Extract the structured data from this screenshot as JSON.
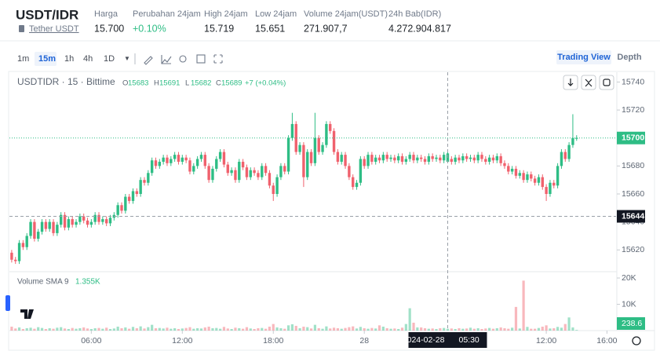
{
  "header": {
    "title": "USDT/IDR",
    "subtitle": "Tether USDT",
    "stats": [
      {
        "label": "Harga",
        "value": "15.700"
      },
      {
        "label": "Perubahan 24jam",
        "value": "+0.10%"
      },
      {
        "label": "High 24jam",
        "value": "15.719"
      },
      {
        "label": "Low 24jam",
        "value": "15.651"
      },
      {
        "label": "Volume 24jam(USDT)",
        "value": "271.907,7"
      },
      {
        "label": "24h Bab(IDR)",
        "value": "4.272.904.817"
      }
    ]
  },
  "toolbar": {
    "intervals": [
      "1m",
      "15m",
      "1h",
      "4h",
      "1D"
    ],
    "active_interval": "15m",
    "views": [
      "Trading View",
      "Depth"
    ]
  },
  "chart_data": {
    "type": "candlestick",
    "symbol_label": "USDTIDR · 15 · Bittime",
    "ohlc_letters": [
      "O",
      "H",
      "L",
      "C"
    ],
    "change_label": "+7 (+0.04%)",
    "legend_index": 115,
    "volume_label": "Volume SMA 9",
    "volume_sma": "1.355K",
    "up_color": "#2ebd85",
    "down_color": "#f0616d",
    "x": [
      0.75,
      1,
      1.25,
      1.5,
      1.75,
      2,
      2.25,
      2.5,
      2.75,
      3,
      3.25,
      3.5,
      3.75,
      4,
      4.25,
      4.5,
      4.75,
      5,
      5.25,
      5.5,
      5.75,
      6,
      6.25,
      6.5,
      6.75,
      7,
      7.25,
      7.5,
      7.75,
      8,
      8.25,
      8.5,
      8.75,
      9,
      9.25,
      9.5,
      9.75,
      10,
      10.25,
      10.5,
      10.75,
      11,
      11.25,
      11.5,
      11.75,
      12,
      12.25,
      12.5,
      12.75,
      13,
      13.25,
      13.5,
      13.75,
      14,
      14.25,
      14.5,
      14.75,
      15,
      15.25,
      15.5,
      15.75,
      16,
      16.25,
      16.5,
      16.75,
      17,
      17.25,
      17.5,
      17.75,
      18,
      18.25,
      18.5,
      18.75,
      19,
      19.25,
      19.5,
      19.75,
      20,
      20.25,
      20.5,
      20.75,
      21,
      21.25,
      21.5,
      21.75,
      22,
      22.25,
      22.5,
      22.75,
      23,
      23.25,
      23.5,
      23.75,
      24,
      24.25,
      24.5,
      24.75,
      25,
      25.25,
      25.5,
      25.75,
      26,
      26.25,
      26.5,
      26.75,
      27,
      27.25,
      27.5,
      27.75,
      28,
      28.25,
      28.5,
      28.75,
      29,
      29.25,
      29.5,
      29.75,
      30,
      30.25,
      30.5,
      30.75,
      31,
      31.25,
      31.5,
      31.75,
      32,
      32.25,
      32.5,
      32.75,
      33,
      33.25,
      33.5,
      33.75,
      34,
      34.25,
      34.5,
      34.75,
      35,
      35.25,
      35.5,
      35.75,
      36,
      36.25,
      36.5,
      36.75,
      37,
      37.25,
      37.5,
      37.75,
      38
    ],
    "open": [
      15618,
      15613,
      15612,
      15625,
      15622,
      15630,
      15640,
      15628,
      15633,
      15640,
      15635,
      15640,
      15632,
      15638,
      15645,
      15636,
      15642,
      15638,
      15640,
      15644,
      15641,
      15638,
      15640,
      15645,
      15640,
      15642,
      15639,
      15643,
      15645,
      15652,
      15648,
      15658,
      15655,
      15662,
      15660,
      15670,
      15668,
      15675,
      15684,
      15680,
      15683,
      15686,
      15682,
      15685,
      15688,
      15683,
      15686,
      15684,
      15676,
      15680,
      15685,
      15688,
      15680,
      15670,
      15678,
      15685,
      15690,
      15681,
      15675,
      15677,
      15670,
      15683,
      15679,
      15672,
      15677,
      15675,
      15672,
      15680,
      15675,
      15666,
      15660,
      15672,
      15680,
      15676,
      15700,
      15710,
      15690,
      15695,
      15672,
      15690,
      15682,
      15700,
      15690,
      15695,
      15710,
      15705,
      15690,
      15683,
      15688,
      15680,
      15672,
      15665,
      15668,
      15685,
      15680,
      15688,
      15683,
      15686,
      15684,
      15688,
      15685,
      15686,
      15684,
      15687,
      15683,
      15685,
      15688,
      15684,
      15686,
      15685,
      15683,
      15687,
      15685,
      15686,
      15684,
      15683,
      15685,
      15683,
      15686,
      15684,
      15687,
      15685,
      15686,
      15684,
      15688,
      15685,
      15683,
      15686,
      15684,
      15687,
      15682,
      15680,
      15676,
      15678,
      15673,
      15675,
      15670,
      15674,
      15671,
      15668,
      15672,
      15665,
      15660,
      15668,
      15666,
      15680,
      15690,
      15685,
      15695,
      15700
    ],
    "high": [
      15620,
      15615,
      15627,
      15627,
      15632,
      15642,
      15642,
      15635,
      15642,
      15642,
      15642,
      15642,
      15640,
      15647,
      15647,
      15644,
      15644,
      15642,
      15646,
      15646,
      15643,
      15642,
      15647,
      15647,
      15644,
      15644,
      15645,
      15647,
      15654,
      15654,
      15660,
      15660,
      15664,
      15664,
      15672,
      15672,
      15677,
      15686,
      15686,
      15685,
      15688,
      15688,
      15687,
      15690,
      15690,
      15688,
      15688,
      15686,
      15682,
      15687,
      15690,
      15690,
      15682,
      15680,
      15687,
      15692,
      15692,
      15683,
      15679,
      15679,
      15685,
      15685,
      15681,
      15679,
      15679,
      15677,
      15682,
      15682,
      15677,
      15668,
      15674,
      15682,
      15682,
      15702,
      15718,
      15712,
      15697,
      15697,
      15692,
      15692,
      15718,
      15702,
      15697,
      15712,
      15712,
      15707,
      15692,
      15690,
      15690,
      15682,
      15674,
      15670,
      15687,
      15687,
      15690,
      15690,
      15688,
      15688,
      15690,
      15690,
      15688,
      15688,
      15689,
      15689,
      15687,
      15690,
      15690,
      15688,
      15688,
      15687,
      15689,
      15689,
      15688,
      15688,
      15690,
      15691,
      15687,
      15688,
      15688,
      15689,
      15689,
      15688,
      15688,
      15690,
      15690,
      15687,
      15688,
      15688,
      15689,
      15689,
      15684,
      15682,
      15680,
      15680,
      15677,
      15677,
      15676,
      15676,
      15673,
      15674,
      15674,
      15667,
      15670,
      15670,
      15682,
      15692,
      15692,
      15697,
      15717,
      15702
    ],
    "low": [
      15611,
      15610,
      15610,
      15620,
      15620,
      15628,
      15626,
      15626,
      15631,
      15633,
      15633,
      15630,
      15630,
      15636,
      15634,
      15634,
      15636,
      15636,
      15638,
      15639,
      15636,
      15636,
      15638,
      15638,
      15638,
      15637,
      15637,
      15641,
      15643,
      15646,
      15646,
      15653,
      15653,
      15658,
      15658,
      15666,
      15666,
      15673,
      15678,
      15678,
      15681,
      15680,
      15680,
      15683,
      15681,
      15681,
      15682,
      15674,
      15674,
      15678,
      15683,
      15678,
      15668,
      15668,
      15676,
      15683,
      15679,
      15673,
      15673,
      15668,
      15668,
      15677,
      15670,
      15670,
      15673,
      15670,
      15670,
      15673,
      15664,
      15655,
      15658,
      15670,
      15674,
      15674,
      15698,
      15688,
      15688,
      15665,
      15670,
      15680,
      15680,
      15688,
      15688,
      15693,
      15703,
      15688,
      15681,
      15681,
      15678,
      15670,
      15663,
      15663,
      15666,
      15678,
      15678,
      15681,
      15681,
      15682,
      15682,
      15683,
      15683,
      15682,
      15682,
      15681,
      15681,
      15683,
      15682,
      15682,
      15683,
      15681,
      15681,
      15683,
      15683,
      15682,
      15682,
      15682,
      15681,
      15681,
      15682,
      15682,
      15683,
      15683,
      15682,
      15682,
      15683,
      15681,
      15681,
      15682,
      15682,
      15680,
      15678,
      15674,
      15674,
      15671,
      15671,
      15668,
      15668,
      15669,
      15666,
      15666,
      15663,
      15655,
      15658,
      15664,
      15664,
      15678,
      15683,
      15683,
      15693,
      15698
    ],
    "close": [
      15613,
      15612,
      15625,
      15622,
      15630,
      15640,
      15628,
      15633,
      15640,
      15635,
      15640,
      15632,
      15638,
      15645,
      15636,
      15642,
      15638,
      15640,
      15644,
      15641,
      15638,
      15640,
      15645,
      15640,
      15642,
      15639,
      15643,
      15645,
      15652,
      15648,
      15658,
      15655,
      15662,
      15660,
      15670,
      15668,
      15675,
      15684,
      15680,
      15683,
      15686,
      15682,
      15685,
      15688,
      15683,
      15686,
      15684,
      15676,
      15680,
      15685,
      15688,
      15680,
      15670,
      15678,
      15685,
      15690,
      15681,
      15675,
      15677,
      15670,
      15683,
      15679,
      15672,
      15677,
      15675,
      15672,
      15680,
      15675,
      15666,
      15660,
      15672,
      15680,
      15676,
      15700,
      15710,
      15690,
      15695,
      15672,
      15690,
      15682,
      15700,
      15690,
      15695,
      15710,
      15705,
      15690,
      15683,
      15688,
      15680,
      15672,
      15665,
      15668,
      15685,
      15680,
      15688,
      15683,
      15686,
      15684,
      15688,
      15685,
      15686,
      15684,
      15687,
      15683,
      15685,
      15688,
      15684,
      15686,
      15685,
      15683,
      15687,
      15685,
      15686,
      15684,
      15688,
      15689,
      15683,
      15686,
      15684,
      15687,
      15685,
      15686,
      15684,
      15688,
      15685,
      15683,
      15686,
      15684,
      15687,
      15682,
      15680,
      15676,
      15678,
      15673,
      15675,
      15670,
      15674,
      15671,
      15668,
      15672,
      15665,
      15660,
      15668,
      15666,
      15680,
      15690,
      15685,
      15695,
      15700,
      15700
    ],
    "volume": [
      1500,
      800,
      1200,
      600,
      900,
      1100,
      700,
      1300,
      1000,
      600,
      900,
      700,
      1100,
      1300,
      800,
      600,
      1000,
      700,
      900,
      1200,
      800,
      600,
      900,
      1000,
      700,
      1100,
      600,
      800,
      1500,
      900,
      1200,
      700,
      1400,
      900,
      1600,
      800,
      1300,
      2200,
      900,
      1000,
      800,
      1100,
      700,
      900,
      600,
      800,
      1000,
      1300,
      700,
      900,
      800,
      1200,
      1500,
      900,
      1000,
      700,
      1400,
      800,
      600,
      1100,
      900,
      700,
      1300,
      800,
      600,
      900,
      1000,
      700,
      1500,
      2500,
      1200,
      900,
      700,
      2000,
      2400,
      1800,
      900,
      1500,
      1300,
      800,
      2200,
      900,
      700,
      1600,
      800,
      1100,
      900,
      700,
      1000,
      1300,
      1600,
      800,
      1400,
      900,
      700,
      1000,
      800,
      2000,
      1500,
      900,
      700,
      800,
      600,
      1100,
      2500,
      8500,
      3000,
      1200,
      1200,
      900,
      700,
      800,
      600,
      900,
      1000,
      700,
      800,
      600,
      900,
      700,
      800,
      1100,
      700,
      900,
      600,
      800,
      1000,
      700,
      900,
      1200,
      900,
      700,
      1100,
      9000,
      800,
      19000,
      1400,
      700,
      700,
      1000,
      1500,
      2000,
      800,
      900,
      1400,
      1100,
      2500,
      5000,
      1200,
      238.6
    ],
    "xlim": [
      0.6,
      40.6
    ],
    "xticks": [
      {
        "value": 6,
        "label": "06:00"
      },
      {
        "value": 12,
        "label": "12:00"
      },
      {
        "value": 18,
        "label": "18:00"
      },
      {
        "value": 24,
        "label": "28"
      },
      {
        "value": 36,
        "label": "12:00"
      },
      {
        "value": 40,
        "label": "16:00"
      }
    ],
    "ylim": [
      15605,
      15747
    ],
    "yticks": [
      15620,
      15640,
      15660,
      15680,
      15700,
      15720,
      15740
    ],
    "volume_ylim": [
      0,
      21800
    ],
    "volume_yticks": [
      {
        "value": 10000,
        "label": "10K"
      },
      {
        "value": 20000,
        "label": "20K"
      }
    ],
    "last_price_line": true,
    "crosshair": {
      "x": 29.5,
      "price": 15644,
      "date": "2024-02-28",
      "time": "05:30"
    }
  }
}
